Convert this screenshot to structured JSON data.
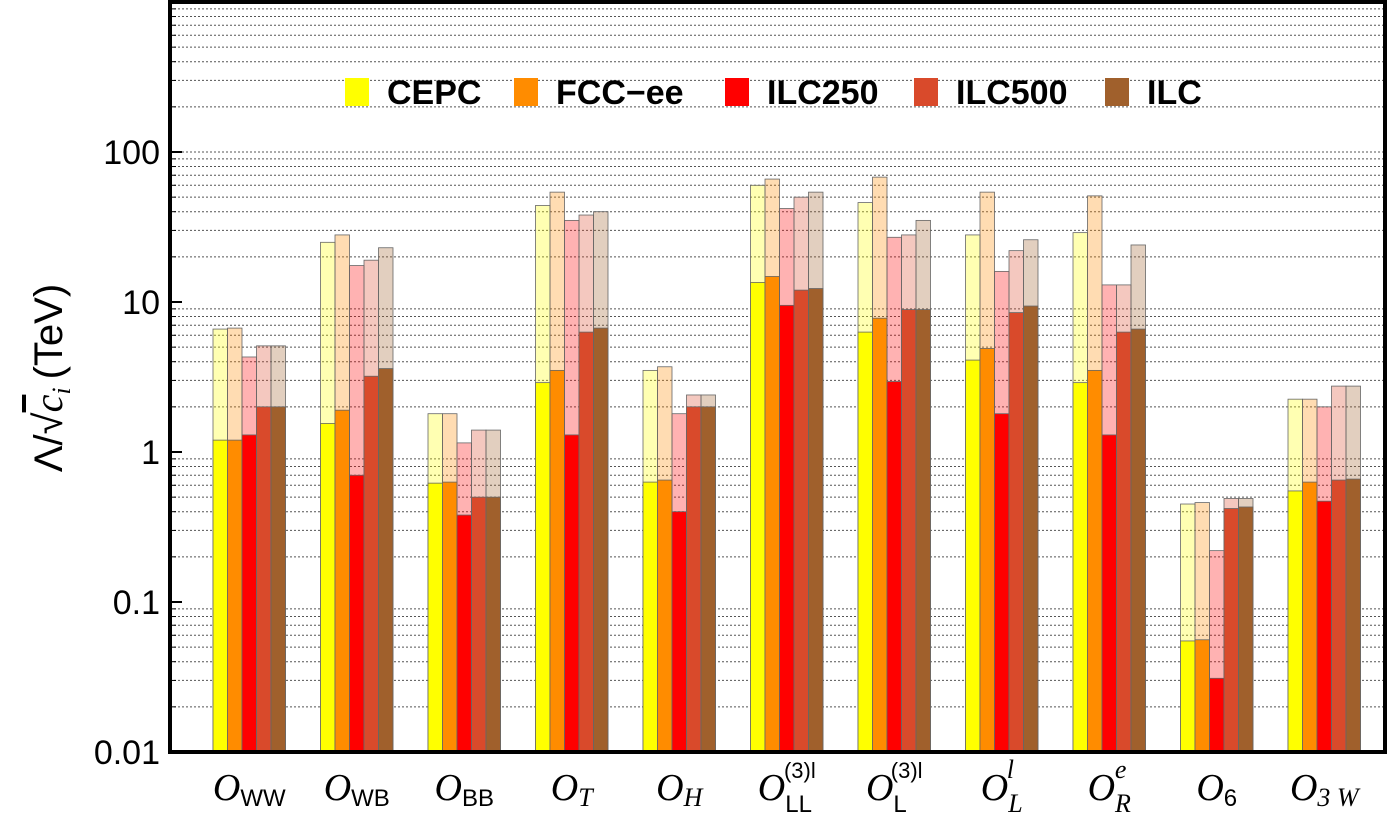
{
  "chart_data": {
    "type": "bar",
    "scale": "log",
    "ylabel": "Λ/√c_i (TeV)",
    "ylabel_parts": {
      "prefix": "Λ/",
      "symbol": "c",
      "index": "i",
      "unit": "(TeV)"
    },
    "ylim": [
      0.01,
      1000
    ],
    "yticks": [
      0.01,
      0.1,
      1,
      10,
      100
    ],
    "ytick_labels": [
      "0.01",
      "0.1",
      "1",
      "10",
      "100"
    ],
    "grid": "dashed horizontal at minor log ticks",
    "legend_position": "top-center",
    "series_names": [
      "CEPC",
      "FCC−ee",
      "ILC250",
      "ILC500",
      "ILC"
    ],
    "series_colors": [
      "#ffff00",
      "#ff8c00",
      "#ff0000",
      "#d94a2b",
      "#a0602c"
    ],
    "categories": [
      {
        "main": "O",
        "sub": "WW",
        "sub_italic": false,
        "sup": ""
      },
      {
        "main": "O",
        "sub": "WB",
        "sub_italic": false,
        "sup": ""
      },
      {
        "main": "O",
        "sub": "BB",
        "sub_italic": false,
        "sup": ""
      },
      {
        "main": "O",
        "sub": "T",
        "sub_italic": true,
        "sup": ""
      },
      {
        "main": "O",
        "sub": "H",
        "sub_italic": true,
        "sup": ""
      },
      {
        "main": "O",
        "sub": "LL",
        "sub_italic": false,
        "sup": "(3)l"
      },
      {
        "main": "O",
        "sub": "L",
        "sub_italic": false,
        "sup": "(3)l"
      },
      {
        "main": "O",
        "sub": "L",
        "sub_italic": true,
        "sup": "l",
        "sup_italic": true
      },
      {
        "main": "O",
        "sub": "R",
        "sub_italic": true,
        "sup": "e",
        "sup_italic": true
      },
      {
        "main": "O",
        "sub": "6",
        "sub_italic": false,
        "sup": ""
      },
      {
        "main": "O",
        "sub": "3 W",
        "sub_italic": true,
        "sup": ""
      }
    ],
    "series": [
      {
        "name": "CEPC",
        "marginalized": [
          1.2,
          1.55,
          0.62,
          2.9,
          0.63,
          13.5,
          6.3,
          4.1,
          2.9,
          0.055,
          0.55
        ],
        "individual": [
          6.6,
          25,
          1.8,
          44,
          3.5,
          60,
          46,
          28,
          29,
          0.45,
          2.25
        ]
      },
      {
        "name": "FCC−ee",
        "marginalized": [
          1.2,
          1.9,
          0.63,
          3.5,
          0.65,
          14.8,
          7.8,
          4.9,
          3.5,
          0.056,
          0.63
        ],
        "individual": [
          6.7,
          28,
          1.8,
          54,
          3.7,
          66,
          68,
          54,
          51,
          0.46,
          2.25
        ]
      },
      {
        "name": "ILC250",
        "marginalized": [
          1.3,
          0.7,
          0.38,
          1.3,
          0.4,
          9.5,
          2.95,
          1.8,
          1.3,
          0.031,
          0.47
        ],
        "individual": [
          4.3,
          17.5,
          1.15,
          35,
          1.8,
          42,
          27,
          16,
          13,
          0.22,
          2.0
        ]
      },
      {
        "name": "ILC500",
        "marginalized": [
          2.0,
          3.2,
          0.5,
          6.3,
          2.0,
          12.0,
          8.9,
          8.5,
          6.3,
          0.42,
          0.65
        ],
        "individual": [
          5.1,
          19,
          1.4,
          38,
          2.4,
          50,
          28,
          22,
          13,
          0.49,
          2.75
        ]
      },
      {
        "name": "ILC",
        "marginalized": [
          2.0,
          3.6,
          0.5,
          6.7,
          2.0,
          12.3,
          8.9,
          9.4,
          6.6,
          0.43,
          0.66
        ],
        "individual": [
          5.1,
          23,
          1.4,
          40,
          2.4,
          54,
          35,
          26,
          24,
          0.49,
          2.75
        ]
      }
    ]
  }
}
